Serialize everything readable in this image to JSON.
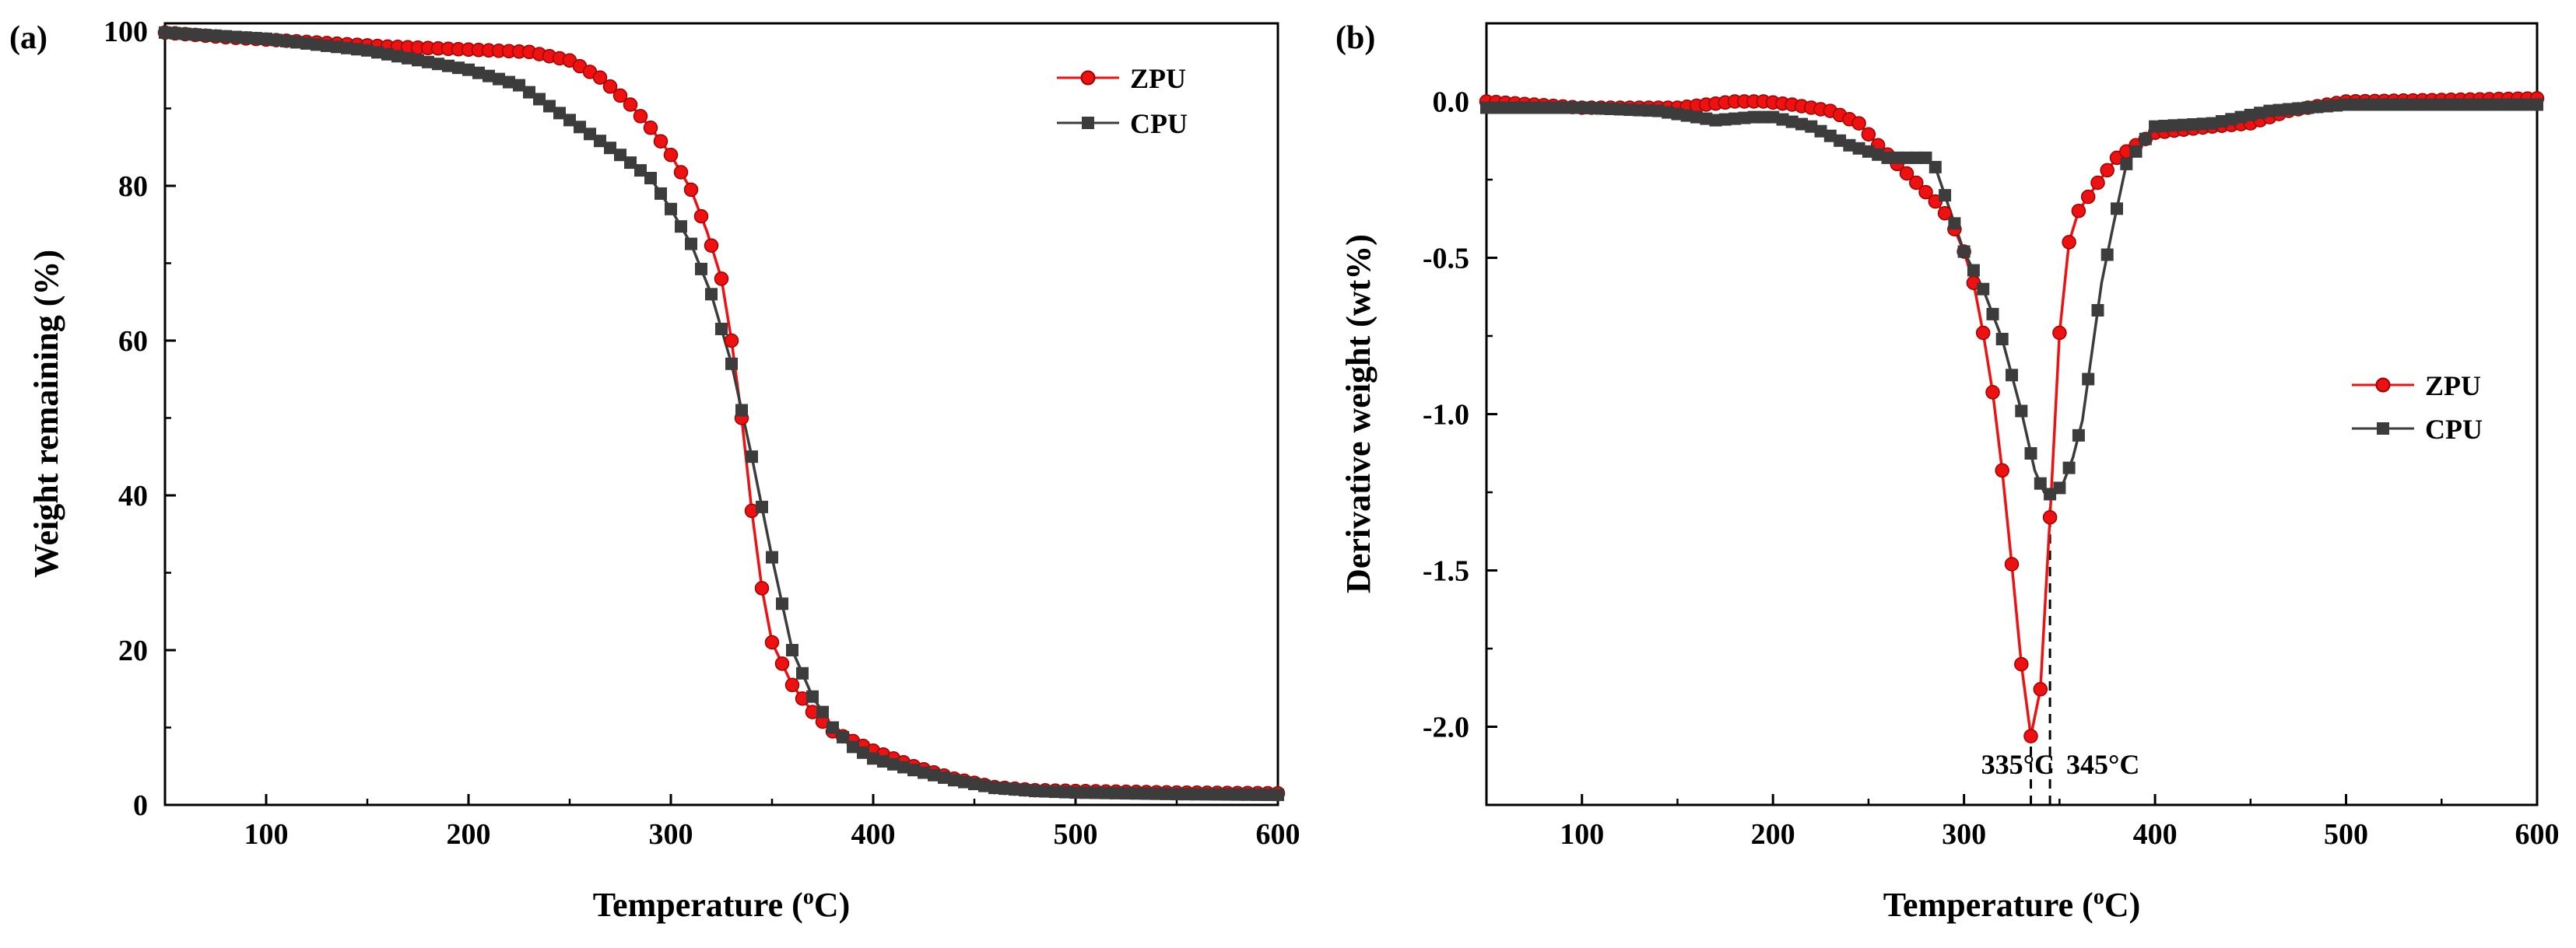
{
  "figure": {
    "panels": [
      "(a)",
      "(b)"
    ]
  },
  "colors": {
    "ZPU": "#ee1111",
    "CPU": "#3c3c3c",
    "axis": "#000000"
  },
  "chart_data": [
    {
      "type": "line",
      "panel_label": "(a)",
      "title": "",
      "xlabel": "Temperature (oC)",
      "ylabel": "Weight remaining (%)",
      "xlim": [
        50,
        600
      ],
      "ylim": [
        0,
        101
      ],
      "xticks": [
        100,
        200,
        300,
        400,
        500,
        600
      ],
      "yticks": [
        0,
        20,
        40,
        60,
        80,
        100
      ],
      "grid": false,
      "legend_position": "top-right",
      "series": [
        {
          "name": "ZPU",
          "marker": "circle",
          "x": [
            50,
            80,
            120,
            160,
            200,
            230,
            250,
            265,
            280,
            290,
            300,
            310,
            318,
            325,
            330,
            335,
            340,
            345,
            350,
            360,
            370,
            380,
            400,
            420,
            440,
            460,
            480,
            500,
            550,
            600
          ],
          "y": [
            99.8,
            99.2,
            98.6,
            98.0,
            97.6,
            97.3,
            96.2,
            94.0,
            90.5,
            87.5,
            84.0,
            79.5,
            74.0,
            68.0,
            60.0,
            50.0,
            38.0,
            28.0,
            21.0,
            15.5,
            12.0,
            9.5,
            7.0,
            5.0,
            3.4,
            2.3,
            1.9,
            1.8,
            1.6,
            1.5
          ]
        },
        {
          "name": "CPU",
          "marker": "square",
          "x": [
            50,
            100,
            150,
            200,
            225,
            250,
            275,
            290,
            300,
            310,
            320,
            330,
            340,
            350,
            360,
            370,
            380,
            390,
            400,
            420,
            440,
            460,
            480,
            500,
            550,
            600
          ],
          "y": [
            99.8,
            99.0,
            97.5,
            95.0,
            93.0,
            88.5,
            84.0,
            81.0,
            77.0,
            72.5,
            66.0,
            57.0,
            45.0,
            32.0,
            20.0,
            14.0,
            10.0,
            7.5,
            6.0,
            4.5,
            3.2,
            2.2,
            1.8,
            1.6,
            1.4,
            1.3
          ]
        }
      ]
    },
    {
      "type": "line",
      "panel_label": "(b)",
      "title": "",
      "xlabel": "Temperature (oC)",
      "ylabel": "Derivative weight (wt%)",
      "xlim": [
        50,
        600
      ],
      "ylim": [
        -2.25,
        0.25
      ],
      "xticks": [
        100,
        200,
        300,
        400,
        500,
        600
      ],
      "yticks": [
        -2.0,
        -1.5,
        -1.0,
        -0.5,
        0.0
      ],
      "grid": false,
      "legend_position": "center-right",
      "annotations": [
        {
          "text": "335°C",
          "x": 335,
          "ymin": -2.25,
          "ymax": -2.03
        },
        {
          "text": "345°C",
          "x": 345,
          "ymin": -2.25,
          "ymax": -1.3
        }
      ],
      "series": [
        {
          "name": "ZPU",
          "marker": "circle",
          "x": [
            50,
            100,
            150,
            180,
            195,
            210,
            230,
            245,
            255,
            265,
            275,
            285,
            293,
            300,
            305,
            310,
            315,
            320,
            325,
            330,
            335,
            340,
            345,
            350,
            355,
            360,
            370,
            380,
            400,
            430,
            450,
            470,
            500,
            600
          ],
          "y": [
            0.0,
            -0.02,
            -0.02,
            0.0,
            0.0,
            -0.01,
            -0.03,
            -0.07,
            -0.14,
            -0.2,
            -0.26,
            -0.32,
            -0.38,
            -0.48,
            -0.58,
            -0.74,
            -0.93,
            -1.18,
            -1.48,
            -1.8,
            -2.03,
            -1.88,
            -1.33,
            -0.74,
            -0.45,
            -0.35,
            -0.26,
            -0.18,
            -0.1,
            -0.08,
            -0.07,
            -0.03,
            0.0,
            0.01
          ]
        },
        {
          "name": "CPU",
          "marker": "square",
          "x": [
            50,
            100,
            140,
            170,
            190,
            200,
            220,
            240,
            260,
            270,
            280,
            285,
            290,
            300,
            310,
            320,
            330,
            337,
            342,
            347,
            352,
            357,
            362,
            367,
            372,
            378,
            385,
            400,
            430,
            460,
            480,
            500,
            600
          ],
          "y": [
            -0.02,
            -0.02,
            -0.03,
            -0.06,
            -0.05,
            -0.05,
            -0.08,
            -0.14,
            -0.18,
            -0.18,
            -0.18,
            -0.21,
            -0.3,
            -0.48,
            -0.6,
            -0.76,
            -0.99,
            -1.18,
            -1.25,
            -1.26,
            -1.22,
            -1.14,
            -1.02,
            -0.8,
            -0.58,
            -0.4,
            -0.2,
            -0.08,
            -0.07,
            -0.03,
            -0.02,
            -0.01,
            -0.01
          ]
        }
      ]
    }
  ]
}
